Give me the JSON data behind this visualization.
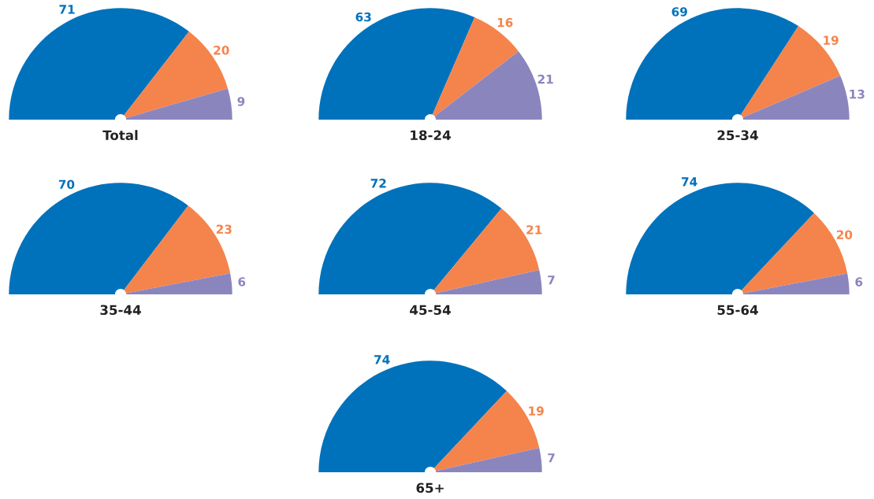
{
  "chart_data": [
    {
      "type": "pie",
      "title": "Total",
      "categories": [
        null,
        null,
        null
      ],
      "values": [
        71,
        20,
        9
      ],
      "colors": [
        "#0072bc",
        "#f4844c",
        "#8b85be"
      ],
      "data_labels": true
    },
    {
      "type": "pie",
      "title": "18-24",
      "categories": [
        null,
        null,
        null
      ],
      "values": [
        63,
        16,
        21
      ],
      "colors": [
        "#0072bc",
        "#f4844c",
        "#8b85be"
      ],
      "data_labels": true
    },
    {
      "type": "pie",
      "title": "25-34",
      "categories": [
        null,
        null,
        null
      ],
      "values": [
        69,
        19,
        13
      ],
      "colors": [
        "#0072bc",
        "#f4844c",
        "#8b85be"
      ],
      "data_labels": true
    },
    {
      "type": "pie",
      "title": "35-44",
      "categories": [
        null,
        null,
        null
      ],
      "values": [
        70,
        23,
        6
      ],
      "colors": [
        "#0072bc",
        "#f4844c",
        "#8b85be"
      ],
      "data_labels": true
    },
    {
      "type": "pie",
      "title": "45-54",
      "categories": [
        null,
        null,
        null
      ],
      "values": [
        72,
        21,
        7
      ],
      "colors": [
        "#0072bc",
        "#f4844c",
        "#8b85be"
      ],
      "data_labels": true
    },
    {
      "type": "pie",
      "title": "55-64",
      "categories": [
        null,
        null,
        null
      ],
      "values": [
        74,
        20,
        6
      ],
      "colors": [
        "#0072bc",
        "#f4844c",
        "#8b85be"
      ],
      "data_labels": true
    },
    {
      "type": "pie",
      "title": "65+",
      "categories": [
        null,
        null,
        null
      ],
      "values": [
        74,
        19,
        7
      ],
      "colors": [
        "#0072bc",
        "#f4844c",
        "#8b85be"
      ],
      "data_labels": true
    }
  ]
}
